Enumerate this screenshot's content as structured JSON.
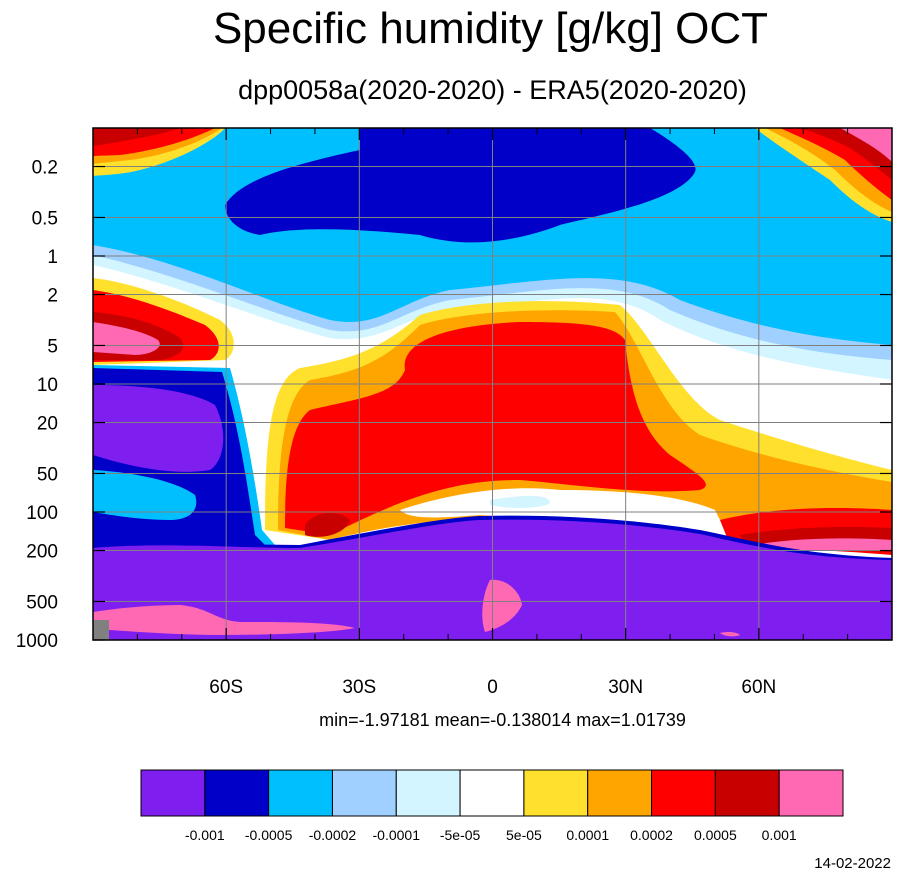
{
  "title": "Specific humidity [g/kg] OCT",
  "subtitle": "dpp0058a(2020-2020) - ERA5(2020-2020)",
  "stats": "min=-1.97181   mean=-0.138014   max=1.01739",
  "date": "14-02-2022",
  "chart_data": {
    "type": "heatmap",
    "title": "Specific humidity [g/kg] OCT",
    "subtitle": "dpp0058a(2020-2020) - ERA5(2020-2020)",
    "x_ticks": [
      {
        "value": -60,
        "label": "60S"
      },
      {
        "value": -30,
        "label": "30S"
      },
      {
        "value": 0,
        "label": "0"
      },
      {
        "value": 30,
        "label": "30N"
      },
      {
        "value": 60,
        "label": "60N"
      }
    ],
    "xlim": [
      -90,
      90
    ],
    "y_ticks": [
      {
        "value": 0.2,
        "label": "0.2"
      },
      {
        "value": 0.5,
        "label": "0.5"
      },
      {
        "value": 1,
        "label": "1"
      },
      {
        "value": 2,
        "label": "2"
      },
      {
        "value": 5,
        "label": "5"
      },
      {
        "value": 10,
        "label": "10"
      },
      {
        "value": 20,
        "label": "20"
      },
      {
        "value": 50,
        "label": "50"
      },
      {
        "value": 100,
        "label": "100"
      },
      {
        "value": 200,
        "label": "200"
      },
      {
        "value": 500,
        "label": "500"
      },
      {
        "value": 1000,
        "label": "1000"
      }
    ],
    "ylim": [
      0.1,
      1000
    ],
    "y_scale": "log-reversed",
    "colorbar_colors": [
      "#7F1FEF",
      "#0000C8",
      "#00BFFF",
      "#A0D0FF",
      "#D2F5FF",
      "#FFFFFF",
      "#FFE12D",
      "#FFA500",
      "#FF0000",
      "#C80000",
      "#FF69B4"
    ],
    "colorbar_levels": [
      "-0.001",
      "-0.0005",
      "-0.0002",
      "-0.0001",
      "-5e-05",
      "5e-05",
      "0.0001",
      "0.0002",
      "0.0005",
      "0.001"
    ]
  }
}
